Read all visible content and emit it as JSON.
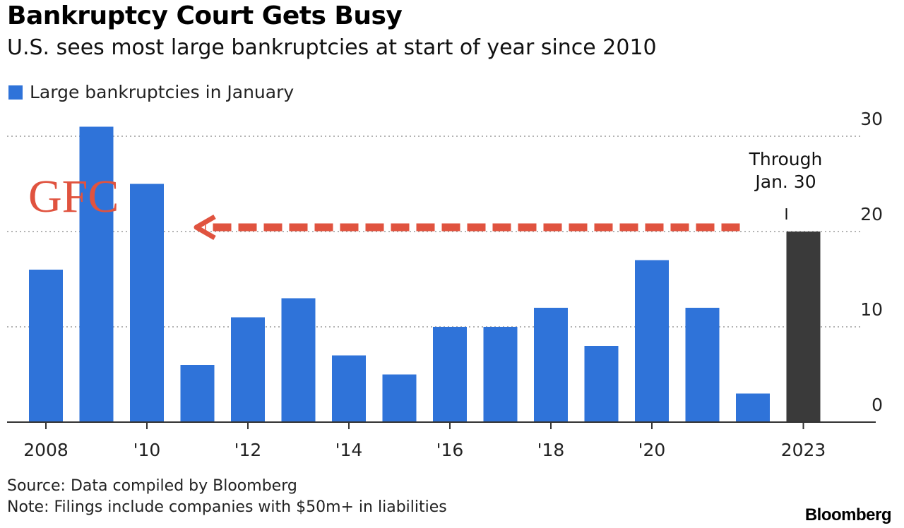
{
  "header": {
    "title": "Bankruptcy Court Gets Busy",
    "subtitle": "U.S. sees most large bankruptcies at start of year since 2010"
  },
  "legend": {
    "label": "Large bankruptcies in January",
    "color": "#2f73d9"
  },
  "footer": {
    "source": "Source: Data compiled by Bloomberg",
    "note": "Note: Filings include companies with $50m+ in liabilities",
    "brand": "Bloomberg"
  },
  "chart_data": {
    "type": "bar",
    "title": "Bankruptcy Court Gets Busy",
    "subtitle": "U.S. sees most large bankruptcies at start of year since 2010",
    "xlabel": "",
    "ylabel": "",
    "ylim": [
      0,
      30
    ],
    "y_ticks": [
      0,
      10,
      20,
      30
    ],
    "y_axis_position": "right",
    "grid": true,
    "legend_position": "top-left",
    "categories": [
      2008,
      2009,
      2010,
      2011,
      2012,
      2013,
      2014,
      2015,
      2016,
      2017,
      2018,
      2019,
      2020,
      2021,
      2022,
      2023
    ],
    "x_tick_labels": [
      {
        "year": 2008,
        "label": "2008"
      },
      {
        "year": 2010,
        "label": "'10"
      },
      {
        "year": 2012,
        "label": "'12"
      },
      {
        "year": 2014,
        "label": "'14"
      },
      {
        "year": 2016,
        "label": "'16"
      },
      {
        "year": 2018,
        "label": "'18"
      },
      {
        "year": 2020,
        "label": "'20"
      },
      {
        "year": 2023,
        "label": "2023"
      }
    ],
    "series": [
      {
        "name": "Large bankruptcies in January",
        "color": "#2f73d9",
        "highlight_color": "#3a3a3a",
        "values": [
          16,
          31,
          25,
          6,
          11,
          13,
          7,
          5,
          10,
          10,
          12,
          8,
          17,
          12,
          3,
          20
        ]
      }
    ],
    "annotations": {
      "through_label_line1": "Through",
      "through_label_line2": "Jan. 30",
      "gfc_label": "GFC",
      "gfc_color": "#e0533f",
      "arrow_from_year": 2023,
      "arrow_to_year": 2010,
      "arrow_value": 20
    }
  }
}
